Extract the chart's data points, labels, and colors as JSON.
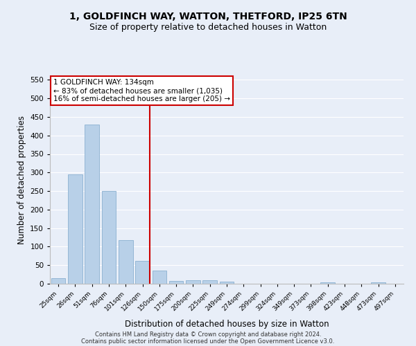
{
  "title1": "1, GOLDFINCH WAY, WATTON, THETFORD, IP25 6TN",
  "title2": "Size of property relative to detached houses in Watton",
  "xlabel": "Distribution of detached houses by size in Watton",
  "ylabel": "Number of detached properties",
  "footnote1": "Contains HM Land Registry data © Crown copyright and database right 2024.",
  "footnote2": "Contains public sector information licensed under the Open Government Licence v3.0.",
  "categories": [
    "25sqm",
    "26sqm",
    "51sqm",
    "76sqm",
    "101sqm",
    "126sqm",
    "150sqm",
    "175sqm",
    "200sqm",
    "225sqm",
    "249sqm",
    "274sqm",
    "299sqm",
    "324sqm",
    "349sqm",
    "373sqm",
    "398sqm",
    "423sqm",
    "448sqm",
    "473sqm",
    "497sqm"
  ],
  "values": [
    15,
    295,
    430,
    250,
    118,
    62,
    35,
    8,
    10,
    10,
    5,
    0,
    0,
    0,
    0,
    0,
    4,
    0,
    0,
    4,
    0
  ],
  "bar_color": "#b8d0e8",
  "bar_edge_color": "#8ab0d0",
  "vline_x": 5.42,
  "vline_color": "#cc0000",
  "annotation_text": "1 GOLDFINCH WAY: 134sqm\n← 83% of detached houses are smaller (1,035)\n16% of semi-detached houses are larger (205) →",
  "annotation_box_color": "#ffffff",
  "annotation_box_edge": "#cc0000",
  "ylim": [
    0,
    560
  ],
  "yticks": [
    0,
    50,
    100,
    150,
    200,
    250,
    300,
    350,
    400,
    450,
    500,
    550
  ],
  "background_color": "#e8eef8",
  "plot_bg_color": "#e8eef8",
  "grid_color": "#ffffff",
  "title1_fontsize": 10,
  "title2_fontsize": 9,
  "xlabel_fontsize": 8.5,
  "ylabel_fontsize": 8.5,
  "annot_fontsize": 7.5
}
